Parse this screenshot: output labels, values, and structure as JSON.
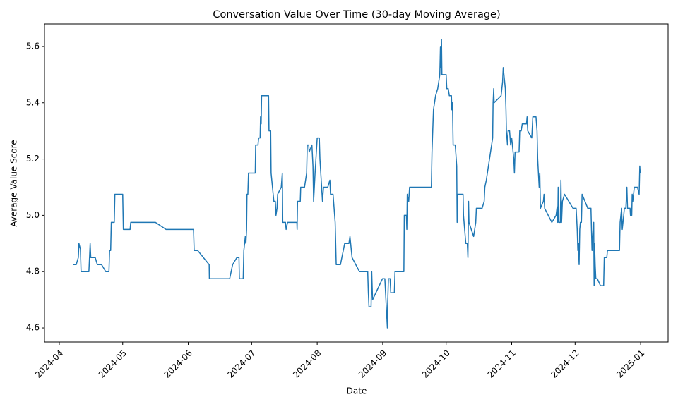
{
  "chart_data": {
    "type": "line",
    "title": "Conversation Value Over Time (30-day Moving Average)",
    "x_label": "Date",
    "y_label": "Average Value Score",
    "xlim": [
      -7,
      288
    ],
    "ylim": [
      4.55,
      5.68
    ],
    "xticks": [
      {
        "value": 0,
        "label": "2024-04"
      },
      {
        "value": 30,
        "label": "2024-05"
      },
      {
        "value": 61,
        "label": "2024-06"
      },
      {
        "value": 91,
        "label": "2024-07"
      },
      {
        "value": 122,
        "label": "2024-08"
      },
      {
        "value": 153,
        "label": "2024-09"
      },
      {
        "value": 183,
        "label": "2024-10"
      },
      {
        "value": 214,
        "label": "2024-11"
      },
      {
        "value": 244,
        "label": "2024-12"
      },
      {
        "value": 275,
        "label": "2025-01"
      }
    ],
    "yticks": [
      {
        "value": 4.6,
        "label": "4.6"
      },
      {
        "value": 4.8,
        "label": "4.8"
      },
      {
        "value": 5.0,
        "label": "5.0"
      },
      {
        "value": 5.2,
        "label": "5.2"
      },
      {
        "value": 5.4,
        "label": "5.4"
      },
      {
        "value": 5.6,
        "label": "5.6"
      }
    ],
    "series": [
      {
        "color": "#1f77b4",
        "x": [
          6.4,
          8,
          9,
          9.3,
          10,
          10.3,
          14,
          14.3,
          14.6,
          14.9,
          17,
          18,
          20,
          22,
          23.5,
          23.8,
          24.3,
          24.6,
          26,
          26.3,
          30,
          30.3,
          33.5,
          33.8,
          45.5,
          50.5,
          63.5,
          63.8,
          65.5,
          70.9,
          71,
          80.6,
          82,
          84,
          85,
          85.2,
          87,
          87.3,
          88,
          88.3,
          88.6,
          88.8,
          89.2,
          89.5,
          92.7,
          92.9,
          94,
          94.3,
          95,
          95.2,
          95.5,
          95.7,
          99,
          99.2,
          100,
          100.2,
          101.5,
          102.2,
          102.5,
          103,
          103.3,
          105,
          105.5,
          105.7,
          107,
          107.3,
          108,
          112.4,
          112.5,
          112.7,
          114,
          114.2,
          116,
          117,
          117.3,
          118,
          118.2,
          119.5,
          120,
          120.3,
          121,
          122,
          123,
          123.3,
          124.5,
          125,
          127,
          128,
          128.3,
          129.5,
          130.5,
          131,
          133,
          135,
          137,
          137.5,
          138.5,
          142,
          145.9,
          146.2,
          146.5,
          147.5,
          147.8,
          148.2,
          152.9,
          154,
          155.2,
          155.3,
          155.7,
          156.5,
          156.8,
          158.5,
          158.8,
          163,
          163.2,
          164.2,
          164.4,
          164.6,
          165.3,
          165.7,
          176,
          176.3,
          177,
          178,
          179,
          180,
          180.3,
          180.5,
          180.8,
          181,
          183,
          183.3,
          184,
          184.5,
          185.5,
          185.7,
          186,
          186.3,
          187.3,
          188,
          188.2,
          188.5,
          191,
          191.2,
          192.3,
          193,
          193.3,
          193.6,
          193.8,
          196,
          197,
          197.3,
          200,
          201,
          201.3,
          202,
          205,
          205.2,
          205.5,
          205.7,
          209,
          209.7,
          210,
          211,
          211.3,
          211.5,
          212,
          212.3,
          213,
          213.5,
          214,
          215,
          215.3,
          215.6,
          217.5,
          217.8,
          218.5,
          219,
          221,
          221.3,
          221.6,
          223.5,
          224,
          225.5,
          226,
          226.3,
          227,
          227.3,
          227.6,
          229,
          229.3,
          229.6,
          233,
          235,
          235.5,
          235.8,
          236,
          236.3,
          237,
          237.3,
          237.6,
          238,
          239,
          243,
          244.5,
          245,
          245.3,
          245.6,
          245.9,
          246.2,
          246.5,
          247,
          247.3,
          250,
          251.5,
          252,
          252.5,
          252.8,
          253,
          253.2,
          253.5,
          253.8,
          254.5,
          256,
          257.5,
          257.8,
          259,
          259.3,
          265,
          265.3,
          266,
          266.3,
          267,
          267.3,
          268,
          268.5,
          268.8,
          270,
          270.2,
          270.8,
          271,
          271.3,
          272,
          273.5,
          274.3,
          274.6,
          274.8
        ],
        "values": [
          4.825,
          4.825,
          4.85,
          4.9,
          4.88,
          4.8,
          4.8,
          4.85,
          4.9,
          4.85,
          4.85,
          4.825,
          4.825,
          4.8,
          4.8,
          4.875,
          4.875,
          4.975,
          4.975,
          5.075,
          5.075,
          4.95,
          4.95,
          4.975,
          4.975,
          4.95,
          4.95,
          4.875,
          4.875,
          4.825,
          4.775,
          4.775,
          4.825,
          4.85,
          4.85,
          4.775,
          4.775,
          4.875,
          4.925,
          4.9,
          4.95,
          5.075,
          5.075,
          5.15,
          5.15,
          5.25,
          5.25,
          5.275,
          5.275,
          5.35,
          5.325,
          5.425,
          5.425,
          5.3,
          5.3,
          5.15,
          5.05,
          5.05,
          5.0,
          5.025,
          5.075,
          5.1,
          5.15,
          4.975,
          4.975,
          4.95,
          4.975,
          4.975,
          4.95,
          5.05,
          5.05,
          5.1,
          5.1,
          5.15,
          5.25,
          5.25,
          5.225,
          5.25,
          5.175,
          5.05,
          5.15,
          5.275,
          5.275,
          5.2,
          5.05,
          5.1,
          5.1,
          5.125,
          5.075,
          5.075,
          4.975,
          4.825,
          4.825,
          4.9,
          4.9,
          4.925,
          4.85,
          4.8,
          4.8,
          4.725,
          4.675,
          4.675,
          4.8,
          4.7,
          4.775,
          4.775,
          4.6,
          4.675,
          4.775,
          4.775,
          4.725,
          4.725,
          4.8,
          4.8,
          5.0,
          5.0,
          4.95,
          5.075,
          5.05,
          5.1,
          5.1,
          5.225,
          5.375,
          5.425,
          5.45,
          5.5,
          5.6,
          5.525,
          5.625,
          5.5,
          5.5,
          5.45,
          5.45,
          5.425,
          5.425,
          5.375,
          5.4,
          5.25,
          5.25,
          5.175,
          4.975,
          5.075,
          5.075,
          5.0,
          4.9,
          4.9,
          4.85,
          5.05,
          4.975,
          4.925,
          4.975,
          5.025,
          5.025,
          5.05,
          5.1,
          5.125,
          5.275,
          5.4,
          5.45,
          5.4,
          5.425,
          5.475,
          5.525,
          5.45,
          5.375,
          5.3,
          5.25,
          5.3,
          5.3,
          5.25,
          5.275,
          5.2,
          5.15,
          5.225,
          5.225,
          5.3,
          5.3,
          5.325,
          5.325,
          5.35,
          5.3,
          5.275,
          5.35,
          5.35,
          5.3,
          5.2,
          5.1,
          5.15,
          5.025,
          5.05,
          5.075,
          5.025,
          4.975,
          5.0,
          5.03,
          4.975,
          5.1,
          4.975,
          4.975,
          5.125,
          4.975,
          5.05,
          5.075,
          5.025,
          5.025,
          4.95,
          4.875,
          4.9,
          4.825,
          4.95,
          4.975,
          4.975,
          5.075,
          5.025,
          5.025,
          4.875,
          4.95,
          4.975,
          4.75,
          4.9,
          4.825,
          4.775,
          4.775,
          4.75,
          4.75,
          4.85,
          4.85,
          4.875,
          4.875,
          4.975,
          5.025,
          4.95,
          5.0,
          5.025,
          5.025,
          5.1,
          5.025,
          5.025,
          5.0,
          5.0,
          5.075,
          5.05,
          5.1,
          5.1,
          5.075,
          5.175,
          5.15
        ]
      }
    ]
  }
}
